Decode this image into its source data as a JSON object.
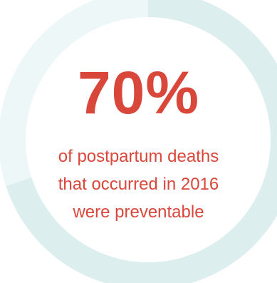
{
  "colors": {
    "accent_text": "#d9473b",
    "ring_highlighted": "#dceeee",
    "ring_remainder": "#eef7f7"
  },
  "stat": {
    "value_label": "70%",
    "caption_lines": [
      "of postpartum deaths",
      "that occurred in 2016",
      "were preventable"
    ]
  },
  "chart_data": {
    "type": "pie",
    "style": "donut",
    "title": "",
    "values": [
      70,
      30
    ],
    "unit": "%",
    "start_angle": "12 o'clock",
    "direction": "clockwise",
    "legend": "none"
  }
}
